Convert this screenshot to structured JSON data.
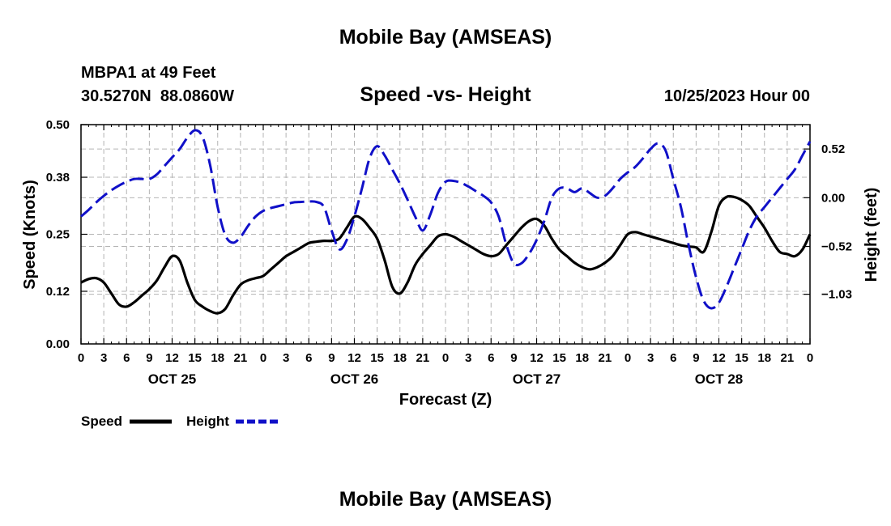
{
  "header": {
    "title_top": "Mobile Bay (AMSEAS)",
    "station_line": "MBPA1 at 49 Feet",
    "coords_line": "30.5270N  88.0860W",
    "datetime_line": "10/25/2023 Hour 00",
    "title_bottom": "Mobile Bay (AMSEAS)"
  },
  "legend": {
    "speed_label": "Speed",
    "height_label": "Height"
  },
  "chart_data": {
    "type": "line",
    "title": "Speed -vs- Height",
    "xlabel": "Forecast (Z)",
    "ylabel": "Speed (Knots)",
    "y2label": "Height (feet)",
    "xlim": [
      0,
      96
    ],
    "ylim": [
      0,
      0.5
    ],
    "y2lim": [
      -1.56,
      0.78
    ],
    "grid": true,
    "legend_position": "bottom-left",
    "x_ticks": [
      0,
      3,
      6,
      9,
      12,
      15,
      18,
      21,
      24,
      27,
      30,
      33,
      36,
      39,
      42,
      45,
      48,
      51,
      54,
      57,
      60,
      63,
      66,
      69,
      72,
      75,
      78,
      81,
      84,
      87,
      90,
      93,
      96
    ],
    "x_tick_labels": [
      "0",
      "3",
      "6",
      "9",
      "12",
      "15",
      "18",
      "21",
      "0",
      "3",
      "6",
      "9",
      "12",
      "15",
      "18",
      "21",
      "0",
      "3",
      "6",
      "9",
      "12",
      "15",
      "18",
      "21",
      "0",
      "3",
      "6",
      "9",
      "12",
      "15",
      "18",
      "21",
      "0"
    ],
    "day_labels": [
      {
        "x": 12,
        "label": "OCT 25"
      },
      {
        "x": 36,
        "label": "OCT 26"
      },
      {
        "x": 60,
        "label": "OCT 27"
      },
      {
        "x": 84,
        "label": "OCT 28"
      }
    ],
    "y_ticks": [
      0.0,
      0.12,
      0.25,
      0.38,
      0.5
    ],
    "y_tick_labels": [
      "0.00",
      "0.12",
      "0.25",
      "0.38",
      "0.50"
    ],
    "y2_ticks": [
      -1.03,
      -0.52,
      0.0,
      0.52
    ],
    "y2_tick_labels": [
      "−1.03",
      "−0.52",
      "0.00",
      "0.52"
    ],
    "series": [
      {
        "name": "Speed",
        "axis": "left",
        "color": "#000000",
        "dash": "solid",
        "x": [
          0,
          1,
          2,
          3,
          4,
          5,
          6,
          7,
          8,
          9,
          10,
          11,
          12,
          13,
          14,
          15,
          16,
          17,
          18,
          19,
          20,
          21,
          22,
          23,
          24,
          25,
          26,
          27,
          28,
          29,
          30,
          31,
          32,
          33,
          34,
          35,
          36,
          37,
          38,
          39,
          40,
          41,
          42,
          43,
          44,
          45,
          46,
          47,
          48,
          49,
          50,
          51,
          52,
          53,
          54,
          55,
          56,
          57,
          58,
          59,
          60,
          61,
          62,
          63,
          64,
          65,
          66,
          67,
          68,
          69,
          70,
          71,
          72,
          73,
          74,
          75,
          76,
          77,
          78,
          79,
          80,
          81,
          82,
          83,
          84,
          85,
          86,
          87,
          88,
          89,
          90,
          91,
          92,
          93,
          94,
          95,
          96
        ],
        "values": [
          0.14,
          0.148,
          0.15,
          0.14,
          0.115,
          0.09,
          0.085,
          0.095,
          0.11,
          0.125,
          0.145,
          0.175,
          0.2,
          0.19,
          0.14,
          0.1,
          0.085,
          0.075,
          0.07,
          0.08,
          0.11,
          0.135,
          0.145,
          0.15,
          0.155,
          0.17,
          0.185,
          0.2,
          0.21,
          0.22,
          0.23,
          0.233,
          0.235,
          0.235,
          0.24,
          0.265,
          0.29,
          0.285,
          0.265,
          0.24,
          0.19,
          0.13,
          0.115,
          0.14,
          0.18,
          0.205,
          0.225,
          0.245,
          0.25,
          0.245,
          0.235,
          0.225,
          0.215,
          0.205,
          0.2,
          0.205,
          0.225,
          0.245,
          0.265,
          0.28,
          0.285,
          0.27,
          0.24,
          0.215,
          0.2,
          0.185,
          0.175,
          0.17,
          0.175,
          0.185,
          0.2,
          0.225,
          0.25,
          0.255,
          0.25,
          0.245,
          0.24,
          0.235,
          0.23,
          0.225,
          0.222,
          0.22,
          0.21,
          0.255,
          0.315,
          0.335,
          0.335,
          0.328,
          0.315,
          0.29,
          0.265,
          0.235,
          0.21,
          0.205,
          0.2,
          0.215,
          0.25
        ]
      },
      {
        "name": "Height",
        "axis": "right",
        "color": "#1010c8",
        "dash": "dashed",
        "x": [
          0,
          1,
          2,
          3,
          4,
          5,
          6,
          7,
          8,
          9,
          10,
          11,
          12,
          13,
          14,
          15,
          16,
          17,
          18,
          19,
          20,
          21,
          22,
          23,
          24,
          25,
          26,
          27,
          28,
          29,
          30,
          31,
          32,
          33,
          34,
          35,
          36,
          37,
          38,
          39,
          40,
          41,
          42,
          43,
          44,
          45,
          46,
          47,
          48,
          49,
          50,
          51,
          52,
          53,
          54,
          55,
          56,
          57,
          58,
          59,
          60,
          61,
          62,
          63,
          64,
          65,
          66,
          67,
          68,
          69,
          70,
          71,
          72,
          73,
          74,
          75,
          76,
          77,
          78,
          79,
          80,
          81,
          82,
          83,
          84,
          85,
          86,
          87,
          88,
          89,
          90,
          91,
          92,
          93,
          94,
          95,
          96
        ],
        "values": [
          -0.2,
          -0.13,
          -0.05,
          0.02,
          0.08,
          0.13,
          0.17,
          0.2,
          0.2,
          0.2,
          0.25,
          0.34,
          0.43,
          0.52,
          0.64,
          0.72,
          0.65,
          0.35,
          -0.1,
          -0.4,
          -0.48,
          -0.42,
          -0.3,
          -0.2,
          -0.14,
          -0.11,
          -0.09,
          -0.07,
          -0.05,
          -0.045,
          -0.04,
          -0.045,
          -0.1,
          -0.35,
          -0.55,
          -0.45,
          -0.2,
          0.1,
          0.42,
          0.55,
          0.45,
          0.3,
          0.15,
          -0.02,
          -0.2,
          -0.35,
          -0.18,
          0.05,
          0.17,
          0.18,
          0.16,
          0.12,
          0.07,
          0.02,
          -0.05,
          -0.2,
          -0.5,
          -0.7,
          -0.7,
          -0.6,
          -0.45,
          -0.25,
          0.0,
          0.1,
          0.1,
          0.06,
          0.1,
          0.05,
          0.0,
          0.02,
          0.1,
          0.2,
          0.27,
          0.33,
          0.42,
          0.52,
          0.58,
          0.5,
          0.2,
          -0.1,
          -0.5,
          -0.85,
          -1.1,
          -1.18,
          -1.12,
          -0.95,
          -0.75,
          -0.55,
          -0.35,
          -0.2,
          -0.1,
          0.0,
          0.1,
          0.2,
          0.3,
          0.45,
          0.6
        ]
      }
    ]
  }
}
